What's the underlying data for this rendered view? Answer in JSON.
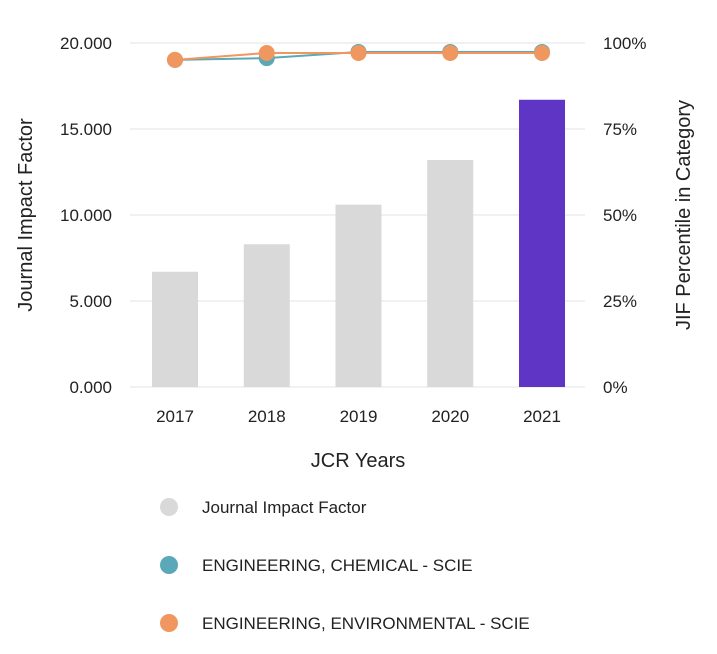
{
  "chart_data": {
    "type": "bar",
    "title": "",
    "xlabel": "JCR Years",
    "ylabel": "Journal Impact Factor",
    "y2label": "JIF Percentile in Category",
    "categories": [
      "2017",
      "2018",
      "2019",
      "2020",
      "2021"
    ],
    "ylim": [
      0,
      20
    ],
    "y2lim": [
      0,
      100
    ],
    "yticks": [
      "0.000",
      "5.000",
      "10.000",
      "15.000",
      "20.000"
    ],
    "ytick_values": [
      0,
      5,
      10,
      15,
      20
    ],
    "y2ticks": [
      "0%",
      "25%",
      "50%",
      "75%",
      "100%"
    ],
    "y2tick_values": [
      0,
      25,
      50,
      75,
      100
    ],
    "grid": true,
    "bars": {
      "name": "Journal Impact Factor",
      "values": [
        6.7,
        8.3,
        10.6,
        13.2,
        16.7
      ],
      "color": "#d9d9d9",
      "highlight_index": 4,
      "highlight_color": "#5e35c4"
    },
    "series": [
      {
        "name": "ENGINEERING, CHEMICAL - SCIE",
        "type": "line",
        "axis": "y2",
        "values": [
          95.1,
          95.6,
          97.4,
          97.4,
          97.4
        ],
        "color": "#5ba8b8"
      },
      {
        "name": "ENGINEERING, ENVIRONMENTAL - SCIE",
        "type": "line",
        "axis": "y2",
        "values": [
          95.1,
          97.1,
          97.1,
          97.1,
          97.1
        ],
        "color": "#f0965f"
      }
    ],
    "legend_position": "bottom"
  }
}
